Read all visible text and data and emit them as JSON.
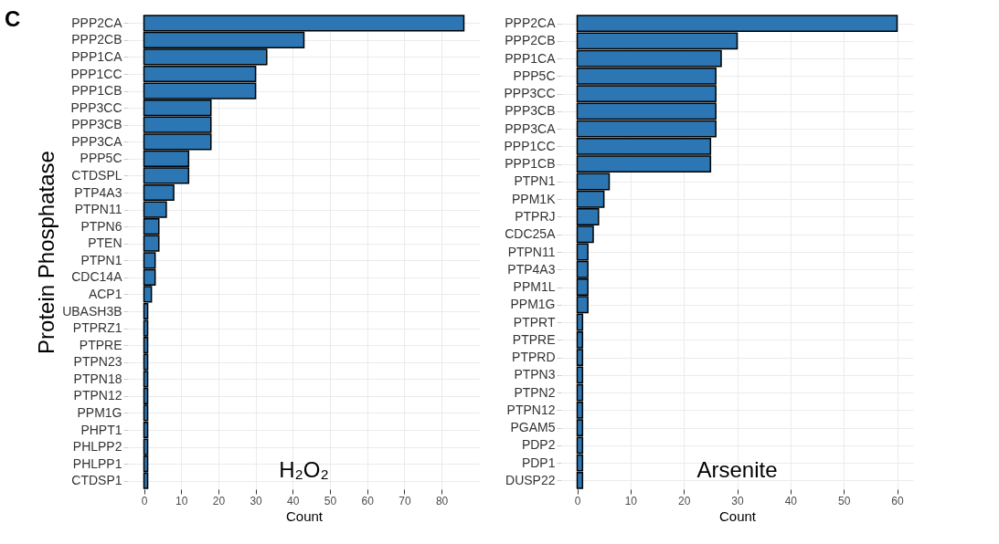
{
  "chart_data": [
    {
      "type": "bar",
      "orientation": "horizontal",
      "ylabel": "Protein Phosphatase",
      "xlabel": "Count",
      "annotations": [
        "C",
        "H₂O₂"
      ],
      "categories": [
        "PPP2CA",
        "PPP2CB",
        "PPP1CA",
        "PPP1CC",
        "PPP1CB",
        "PPP3CC",
        "PPP3CB",
        "PPP3CA",
        "PPP5C",
        "CTDSPL",
        "PTP4A3",
        "PTPN11",
        "PTPN6",
        "PTEN",
        "PTPN1",
        "CDC14A",
        "ACP1",
        "UBASH3B",
        "PTPRZ1",
        "PTPRE",
        "PTPN23",
        "PTPN18",
        "PTPN12",
        "PPM1G",
        "PHPT1",
        "PHLPP2",
        "PHLPP1",
        "CTDSP1"
      ],
      "values": [
        86,
        43,
        33,
        30,
        30,
        18,
        18,
        18,
        12,
        12,
        8,
        6,
        4,
        4,
        3,
        3,
        2,
        1,
        1,
        1,
        1,
        1,
        1,
        1,
        1,
        1,
        1,
        1
      ],
      "color": "#2c77b3",
      "xlim": [
        -4.3,
        90.3
      ],
      "xticks": [
        0,
        10,
        20,
        30,
        40,
        50,
        60,
        70,
        80
      ],
      "grid": true
    },
    {
      "type": "bar",
      "orientation": "horizontal",
      "xlabel": "Count",
      "annotations": [
        "Arsenite"
      ],
      "categories": [
        "PPP2CA",
        "PPP2CB",
        "PPP1CA",
        "PPP5C",
        "PPP3CC",
        "PPP3CB",
        "PPP3CA",
        "PPP1CC",
        "PPP1CB",
        "PTPN1",
        "PPM1K",
        "PTPRJ",
        "CDC25A",
        "PTPN11",
        "PTP4A3",
        "PPM1L",
        "PPM1G",
        "PTPRT",
        "PTPRE",
        "PTPRD",
        "PTPN3",
        "PTPN2",
        "PTPN12",
        "PGAM5",
        "PDP2",
        "PDP1",
        "DUSP22"
      ],
      "values": [
        60,
        30,
        27,
        26,
        26,
        26,
        26,
        25,
        25,
        6,
        5,
        4,
        3,
        2,
        2,
        2,
        2,
        1,
        1,
        1,
        1,
        1,
        1,
        1,
        1,
        1,
        1
      ],
      "color": "#2c77b3",
      "xlim": [
        -3,
        63
      ],
      "xticks": [
        0,
        10,
        20,
        30,
        40,
        50,
        60
      ],
      "grid": true
    }
  ]
}
